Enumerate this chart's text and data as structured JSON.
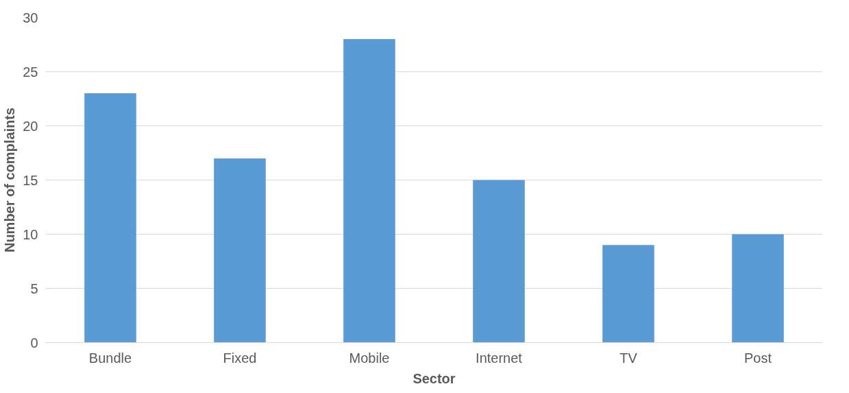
{
  "chart_data": {
    "type": "bar",
    "xlabel": "Sector",
    "ylabel": "Number of complaints",
    "categories": [
      "Bundle",
      "Fixed",
      "Mobile",
      "Internet",
      "TV",
      "Post"
    ],
    "values": [
      23,
      17,
      28,
      15,
      9,
      10
    ],
    "color": "#5b9bd5",
    "ylim": [
      0,
      30
    ],
    "yticks": [
      0,
      5,
      10,
      15,
      20,
      25,
      30
    ],
    "grid": "y"
  }
}
